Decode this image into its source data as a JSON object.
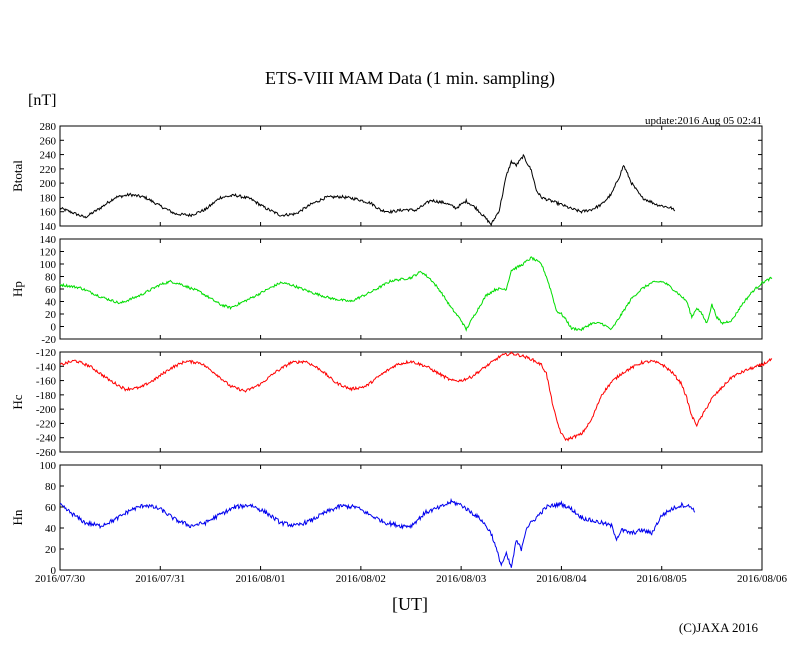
{
  "chart_data": {
    "type": "line",
    "title": "ETS-VIII MAM Data (1 min. sampling)",
    "unit_label": "[nT]",
    "update": "update:2016 Aug 05 02:41",
    "xlabel": "[UT]",
    "copyright": "(C)JAXA 2016",
    "x_ticks": [
      "2016/07/30",
      "2016/07/31",
      "2016/08/01",
      "2016/08/02",
      "2016/08/03",
      "2016/08/04",
      "2016/08/05",
      "2016/08/06"
    ],
    "x_unit": "days since 2016/07/30 00:00 UT",
    "xlim": [
      0,
      7
    ],
    "panels": [
      {
        "name": "Btotal",
        "ylabel": "Btotal",
        "color": "#000000",
        "ylim": [
          140,
          280
        ],
        "yticks": [
          140,
          160,
          180,
          200,
          220,
          240,
          260,
          280
        ],
        "noise": 2,
        "points": [
          [
            0,
            165
          ],
          [
            0.1,
            160
          ],
          [
            0.25,
            152
          ],
          [
            0.4,
            165
          ],
          [
            0.55,
            180
          ],
          [
            0.7,
            184
          ],
          [
            0.85,
            180
          ],
          [
            1.0,
            168
          ],
          [
            1.15,
            157
          ],
          [
            1.3,
            155
          ],
          [
            1.45,
            163
          ],
          [
            1.6,
            180
          ],
          [
            1.75,
            183
          ],
          [
            1.9,
            178
          ],
          [
            2.05,
            165
          ],
          [
            2.2,
            155
          ],
          [
            2.35,
            157
          ],
          [
            2.5,
            170
          ],
          [
            2.65,
            180
          ],
          [
            2.8,
            181
          ],
          [
            2.95,
            178
          ],
          [
            3.1,
            172
          ],
          [
            3.2,
            162
          ],
          [
            3.3,
            160
          ],
          [
            3.45,
            163
          ],
          [
            3.55,
            162
          ],
          [
            3.7,
            176
          ],
          [
            3.85,
            172
          ],
          [
            3.95,
            165
          ],
          [
            4.05,
            175
          ],
          [
            4.15,
            165
          ],
          [
            4.25,
            150
          ],
          [
            4.3,
            142
          ],
          [
            4.38,
            162
          ],
          [
            4.45,
            210
          ],
          [
            4.5,
            230
          ],
          [
            4.55,
            225
          ],
          [
            4.62,
            238
          ],
          [
            4.7,
            218
          ],
          [
            4.75,
            190
          ],
          [
            4.8,
            180
          ],
          [
            4.9,
            175
          ],
          [
            5.0,
            170
          ],
          [
            5.1,
            164
          ],
          [
            5.2,
            160
          ],
          [
            5.3,
            163
          ],
          [
            5.4,
            170
          ],
          [
            5.5,
            185
          ],
          [
            5.58,
            210
          ],
          [
            5.62,
            225
          ],
          [
            5.7,
            200
          ],
          [
            5.8,
            180
          ],
          [
            5.95,
            170
          ],
          [
            6.1,
            165
          ],
          [
            6.13,
            161
          ]
        ]
      },
      {
        "name": "Hp",
        "ylabel": "Hp",
        "color": "#00dd00",
        "ylim": [
          -20,
          140
        ],
        "yticks": [
          -20,
          0,
          20,
          40,
          60,
          80,
          100,
          120,
          140
        ],
        "noise": 2,
        "points": [
          [
            0,
            67
          ],
          [
            0.2,
            62
          ],
          [
            0.4,
            48
          ],
          [
            0.6,
            37
          ],
          [
            0.8,
            50
          ],
          [
            1.0,
            67
          ],
          [
            1.1,
            72
          ],
          [
            1.2,
            68
          ],
          [
            1.4,
            55
          ],
          [
            1.6,
            35
          ],
          [
            1.7,
            30
          ],
          [
            1.9,
            45
          ],
          [
            2.1,
            62
          ],
          [
            2.2,
            70
          ],
          [
            2.3,
            67
          ],
          [
            2.5,
            55
          ],
          [
            2.7,
            45
          ],
          [
            2.9,
            40
          ],
          [
            3.1,
            55
          ],
          [
            3.3,
            73
          ],
          [
            3.5,
            78
          ],
          [
            3.6,
            88
          ],
          [
            3.7,
            75
          ],
          [
            3.8,
            55
          ],
          [
            3.9,
            30
          ],
          [
            4.0,
            10
          ],
          [
            4.05,
            -5
          ],
          [
            4.12,
            15
          ],
          [
            4.25,
            50
          ],
          [
            4.35,
            60
          ],
          [
            4.45,
            60
          ],
          [
            4.5,
            90
          ],
          [
            4.6,
            98
          ],
          [
            4.7,
            110
          ],
          [
            4.8,
            100
          ],
          [
            4.85,
            80
          ],
          [
            4.9,
            55
          ],
          [
            4.95,
            25
          ],
          [
            5.0,
            20
          ],
          [
            5.05,
            10
          ],
          [
            5.1,
            -3
          ],
          [
            5.2,
            -5
          ],
          [
            5.3,
            5
          ],
          [
            5.4,
            5
          ],
          [
            5.5,
            -5
          ],
          [
            5.6,
            20
          ],
          [
            5.7,
            45
          ],
          [
            5.8,
            60
          ],
          [
            5.9,
            70
          ],
          [
            6.0,
            72
          ],
          [
            6.05,
            68
          ],
          [
            6.15,
            55
          ],
          [
            6.25,
            40
          ],
          [
            6.3,
            15
          ],
          [
            6.35,
            30
          ],
          [
            6.4,
            20
          ],
          [
            6.45,
            5
          ],
          [
            6.5,
            35
          ],
          [
            6.55,
            15
          ],
          [
            6.6,
            5
          ],
          [
            6.7,
            10
          ],
          [
            6.8,
            35
          ],
          [
            6.9,
            55
          ],
          [
            7.0,
            70
          ],
          [
            7.1,
            78
          ]
        ]
      },
      {
        "name": "Hc",
        "ylabel": "Hc",
        "color": "#ff0000",
        "ylim": [
          -260,
          -120
        ],
        "yticks": [
          -260,
          -240,
          -220,
          -200,
          -180,
          -160,
          -140,
          -120
        ],
        "noise": 2,
        "points": [
          [
            0,
            -138
          ],
          [
            0.15,
            -132
          ],
          [
            0.3,
            -140
          ],
          [
            0.5,
            -160
          ],
          [
            0.65,
            -172
          ],
          [
            0.8,
            -170
          ],
          [
            0.95,
            -158
          ],
          [
            1.1,
            -143
          ],
          [
            1.25,
            -133
          ],
          [
            1.4,
            -135
          ],
          [
            1.55,
            -150
          ],
          [
            1.7,
            -168
          ],
          [
            1.85,
            -175
          ],
          [
            2.0,
            -165
          ],
          [
            2.15,
            -148
          ],
          [
            2.3,
            -135
          ],
          [
            2.45,
            -133
          ],
          [
            2.6,
            -145
          ],
          [
            2.75,
            -163
          ],
          [
            2.9,
            -172
          ],
          [
            3.05,
            -168
          ],
          [
            3.2,
            -152
          ],
          [
            3.35,
            -138
          ],
          [
            3.5,
            -133
          ],
          [
            3.65,
            -140
          ],
          [
            3.8,
            -152
          ],
          [
            3.9,
            -160
          ],
          [
            4.0,
            -160
          ],
          [
            4.1,
            -155
          ],
          [
            4.2,
            -145
          ],
          [
            4.3,
            -135
          ],
          [
            4.4,
            -125
          ],
          [
            4.5,
            -122
          ],
          [
            4.6,
            -125
          ],
          [
            4.7,
            -130
          ],
          [
            4.8,
            -138
          ],
          [
            4.85,
            -150
          ],
          [
            4.9,
            -185
          ],
          [
            4.95,
            -215
          ],
          [
            5.0,
            -235
          ],
          [
            5.05,
            -243
          ],
          [
            5.1,
            -240
          ],
          [
            5.2,
            -235
          ],
          [
            5.3,
            -215
          ],
          [
            5.4,
            -180
          ],
          [
            5.5,
            -162
          ],
          [
            5.6,
            -150
          ],
          [
            5.7,
            -142
          ],
          [
            5.8,
            -135
          ],
          [
            5.9,
            -133
          ],
          [
            6.0,
            -137
          ],
          [
            6.1,
            -148
          ],
          [
            6.2,
            -165
          ],
          [
            6.25,
            -185
          ],
          [
            6.3,
            -210
          ],
          [
            6.35,
            -222
          ],
          [
            6.42,
            -205
          ],
          [
            6.5,
            -185
          ],
          [
            6.6,
            -170
          ],
          [
            6.7,
            -155
          ],
          [
            6.85,
            -145
          ],
          [
            7.0,
            -138
          ],
          [
            7.1,
            -130
          ]
        ]
      },
      {
        "name": "Hn",
        "ylabel": "Hn",
        "color": "#0000ee",
        "ylim": [
          0,
          100
        ],
        "yticks": [
          0,
          20,
          40,
          60,
          80,
          100
        ],
        "noise": 2,
        "points": [
          [
            0,
            62
          ],
          [
            0.1,
            55
          ],
          [
            0.25,
            45
          ],
          [
            0.4,
            42
          ],
          [
            0.55,
            48
          ],
          [
            0.7,
            57
          ],
          [
            0.85,
            62
          ],
          [
            1.0,
            58
          ],
          [
            1.15,
            48
          ],
          [
            1.3,
            42
          ],
          [
            1.45,
            45
          ],
          [
            1.6,
            53
          ],
          [
            1.75,
            60
          ],
          [
            1.9,
            62
          ],
          [
            2.05,
            55
          ],
          [
            2.2,
            45
          ],
          [
            2.35,
            42
          ],
          [
            2.5,
            47
          ],
          [
            2.65,
            55
          ],
          [
            2.8,
            61
          ],
          [
            2.95,
            60
          ],
          [
            3.1,
            52
          ],
          [
            3.25,
            45
          ],
          [
            3.4,
            42
          ],
          [
            3.5,
            42
          ],
          [
            3.65,
            55
          ],
          [
            3.8,
            60
          ],
          [
            3.9,
            65
          ],
          [
            4.0,
            62
          ],
          [
            4.1,
            55
          ],
          [
            4.2,
            48
          ],
          [
            4.3,
            35
          ],
          [
            4.35,
            20
          ],
          [
            4.4,
            5
          ],
          [
            4.45,
            15
          ],
          [
            4.5,
            2
          ],
          [
            4.55,
            28
          ],
          [
            4.6,
            20
          ],
          [
            4.65,
            40
          ],
          [
            4.75,
            50
          ],
          [
            4.85,
            60
          ],
          [
            5.0,
            63
          ],
          [
            5.1,
            58
          ],
          [
            5.2,
            50
          ],
          [
            5.3,
            47
          ],
          [
            5.4,
            45
          ],
          [
            5.5,
            42
          ],
          [
            5.55,
            30
          ],
          [
            5.6,
            38
          ],
          [
            5.7,
            35
          ],
          [
            5.8,
            38
          ],
          [
            5.9,
            35
          ],
          [
            6.0,
            52
          ],
          [
            6.1,
            58
          ],
          [
            6.2,
            62
          ],
          [
            6.3,
            60
          ],
          [
            6.33,
            55
          ]
        ]
      }
    ]
  }
}
